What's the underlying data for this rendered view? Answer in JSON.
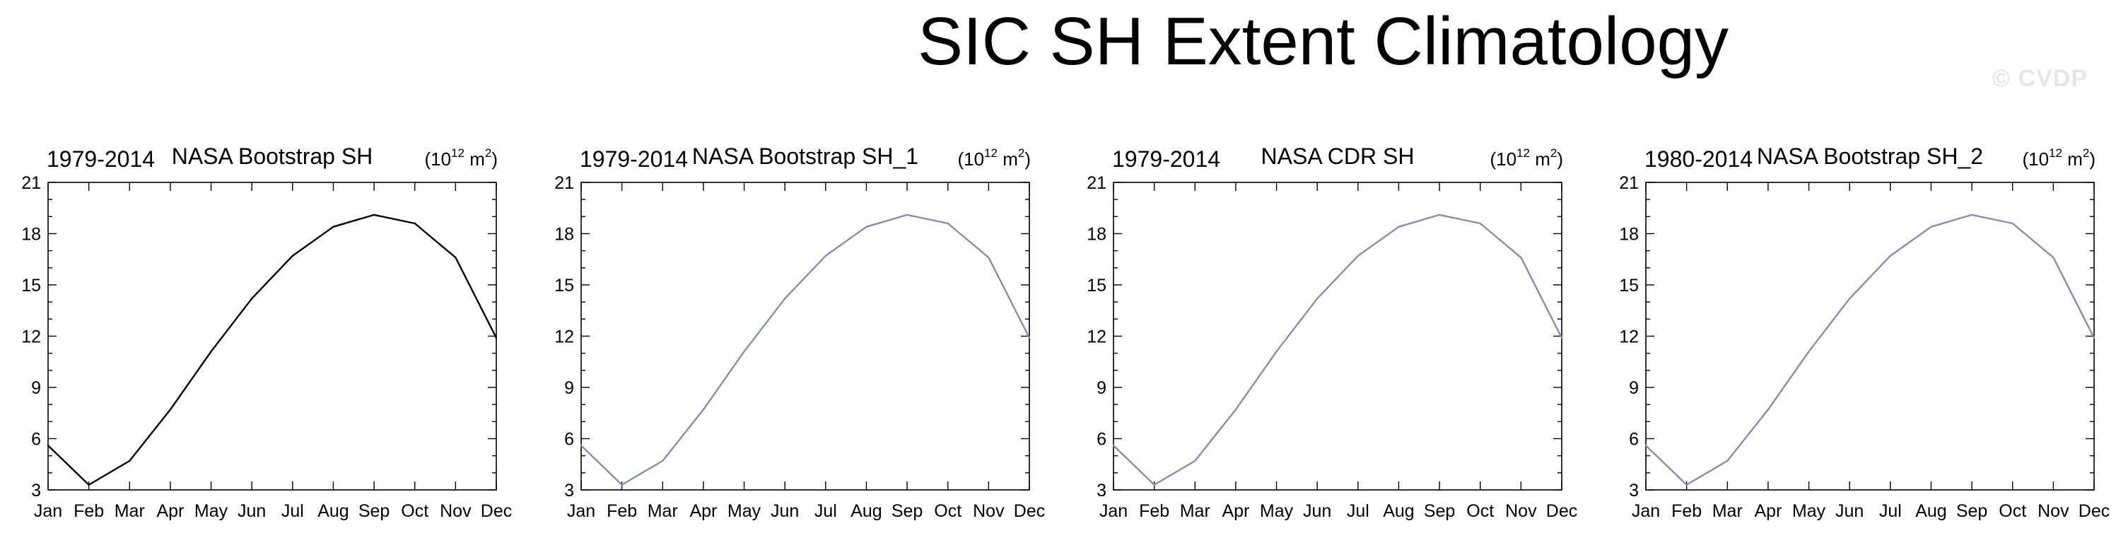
{
  "figure": {
    "title": "SIC SH Extent Climatology",
    "watermark": "© CVDP"
  },
  "chart_data": [
    {
      "type": "line",
      "period": "1979-2014",
      "title": "NASA Bootstrap SH",
      "units": {
        "base": "(10",
        "exp": "12",
        "unit": " m",
        "unit_exp": "2",
        "close": ")"
      },
      "line_color": "#000000",
      "categories": [
        "Jan",
        "Feb",
        "Mar",
        "Apr",
        "May",
        "Jun",
        "Jul",
        "Aug",
        "Sep",
        "Oct",
        "Nov",
        "Dec"
      ],
      "values": [
        5.6,
        3.3,
        4.7,
        7.7,
        11.1,
        14.2,
        16.7,
        18.4,
        19.1,
        18.6,
        16.6,
        11.9
      ],
      "ylim": [
        3,
        21
      ],
      "yticks": [
        3,
        6,
        9,
        12,
        15,
        18,
        21
      ]
    },
    {
      "type": "line",
      "period": "1979-2014",
      "title": "NASA Bootstrap SH_1",
      "units": {
        "base": "(10",
        "exp": "12",
        "unit": " m",
        "unit_exp": "2",
        "close": ")"
      },
      "line_color": "#8a8ca8",
      "categories": [
        "Jan",
        "Feb",
        "Mar",
        "Apr",
        "May",
        "Jun",
        "Jul",
        "Aug",
        "Sep",
        "Oct",
        "Nov",
        "Dec"
      ],
      "values": [
        5.6,
        3.3,
        4.7,
        7.7,
        11.1,
        14.2,
        16.7,
        18.4,
        19.1,
        18.6,
        16.6,
        11.9
      ],
      "ylim": [
        3,
        21
      ],
      "yticks": [
        3,
        6,
        9,
        12,
        15,
        18,
        21
      ]
    },
    {
      "type": "line",
      "period": "1979-2014",
      "title": "NASA CDR SH",
      "units": {
        "base": "(10",
        "exp": "12",
        "unit": " m",
        "unit_exp": "2",
        "close": ")"
      },
      "line_color": "#8a8ca8",
      "categories": [
        "Jan",
        "Feb",
        "Mar",
        "Apr",
        "May",
        "Jun",
        "Jul",
        "Aug",
        "Sep",
        "Oct",
        "Nov",
        "Dec"
      ],
      "values": [
        5.6,
        3.3,
        4.7,
        7.7,
        11.1,
        14.2,
        16.7,
        18.4,
        19.1,
        18.6,
        16.6,
        11.9
      ],
      "ylim": [
        3,
        21
      ],
      "yticks": [
        3,
        6,
        9,
        12,
        15,
        18,
        21
      ]
    },
    {
      "type": "line",
      "period": "1980-2014",
      "title": "NASA Bootstrap SH_2",
      "units": {
        "base": "(10",
        "exp": "12",
        "unit": " m",
        "unit_exp": "2",
        "close": ")"
      },
      "line_color": "#8a8ca8",
      "categories": [
        "Jan",
        "Feb",
        "Mar",
        "Apr",
        "May",
        "Jun",
        "Jul",
        "Aug",
        "Sep",
        "Oct",
        "Nov",
        "Dec"
      ],
      "values": [
        5.6,
        3.3,
        4.7,
        7.7,
        11.1,
        14.2,
        16.7,
        18.4,
        19.1,
        18.6,
        16.6,
        11.9
      ],
      "ylim": [
        3,
        21
      ],
      "yticks": [
        3,
        6,
        9,
        12,
        15,
        18,
        21
      ]
    }
  ]
}
